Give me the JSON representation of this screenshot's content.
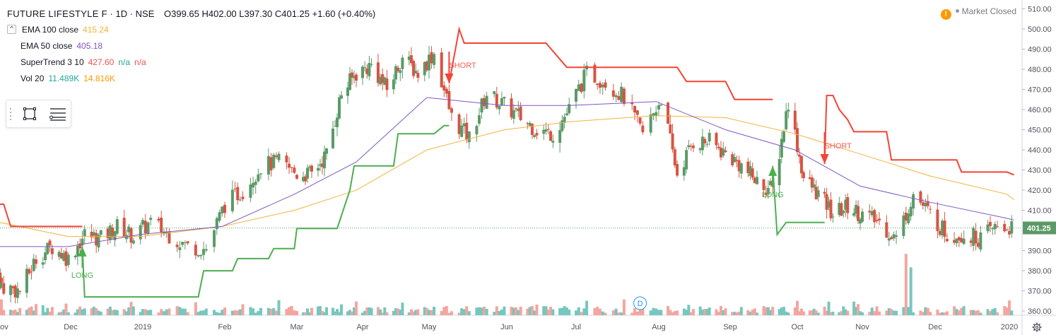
{
  "header": {
    "symbol": "FUTURE LIFESTYLE F",
    "interval": " · 1D · NSE",
    "ohlc": "O399.65 H402.00 L397.30 C401.25 +1.60 (+0.40%)"
  },
  "indicators": [
    {
      "name": "EMA 100 close",
      "value": "415.24",
      "color": "#f2b33d"
    },
    {
      "name": "EMA 50 close",
      "value": "405.18",
      "color": "#7e57c2"
    },
    {
      "name": "SuperTrend 3 10",
      "value": "427.60",
      "extra1": "n/a",
      "extra2": "n/a",
      "color": "#ef5350",
      "extra1_color": "#26a69a",
      "extra2_color": "#ef5350"
    },
    {
      "name": "Vol 20",
      "value": "11.489K",
      "value2": "14.816K",
      "color": "#26a69a",
      "value2_color": "#ff9800"
    }
  ],
  "market_status": "Market Closed",
  "icons": {
    "warning": "warning-icon",
    "settings": "gear-icon",
    "rect": "rectangle-tool-icon",
    "lines": "lines-tool-icon",
    "collapse": "chevron-up-icon",
    "dividend": "dividend-marker-icon"
  },
  "colors": {
    "up": "#5b9a68",
    "down": "#d75442",
    "ema100": "#f2b33d",
    "ema50": "#7e57c2",
    "st_up": "#4caf50",
    "st_down": "#f44336",
    "vol_up": "#76c7bd",
    "vol_down": "#f4a5a0"
  },
  "chart_data": {
    "type": "candlestick",
    "y_axis_ticks": [
      "510.00",
      "500.00",
      "490.00",
      "480.00",
      "470.00",
      "460.00",
      "450.00",
      "440.00",
      "430.00",
      "420.00",
      "410.00",
      "400.00",
      "390.00",
      "380.00",
      "370.00",
      "360.00"
    ],
    "ylim": [
      355,
      513
    ],
    "x_axis_labels": [
      "Nov",
      "Dec",
      "2019",
      "Feb",
      "Mar",
      "Apr",
      "May",
      "Jun",
      "Jul",
      "Aug",
      "Sep",
      "Oct",
      "Nov",
      "Dec",
      "2020"
    ],
    "last_price": "401.25",
    "signals": [
      {
        "label": "LONG",
        "type": "long",
        "date": "2018-12-06",
        "price": 392
      },
      {
        "label": "SHORT",
        "type": "short",
        "date": "2019-05-09",
        "price": 473
      },
      {
        "label": "LONG",
        "type": "long",
        "date": "2019-09-20",
        "price": 432
      },
      {
        "label": "SHORT",
        "type": "short",
        "date": "2019-10-14",
        "price": 433
      }
    ],
    "dividend_marker": {
      "label": "D",
      "date": "2019-07-25"
    },
    "close_path": [
      [
        "2018-10-29",
        378
      ],
      [
        "2018-11-02",
        372
      ],
      [
        "2018-11-09",
        370
      ],
      [
        "2018-11-16",
        386
      ],
      [
        "2018-11-23",
        392
      ],
      [
        "2018-11-30",
        386
      ],
      [
        "2018-12-07",
        398
      ],
      [
        "2018-12-14",
        396
      ],
      [
        "2018-12-21",
        402
      ],
      [
        "2018-12-28",
        397
      ],
      [
        "2019-01-04",
        404
      ],
      [
        "2019-01-11",
        398
      ],
      [
        "2019-01-18",
        392
      ],
      [
        "2019-01-25",
        391
      ],
      [
        "2019-02-01",
        413
      ],
      [
        "2019-02-08",
        420
      ],
      [
        "2019-02-15",
        432
      ],
      [
        "2019-02-22",
        434
      ],
      [
        "2019-03-01",
        428
      ],
      [
        "2019-03-08",
        428
      ],
      [
        "2019-03-15",
        438
      ],
      [
        "2019-03-22",
        468
      ],
      [
        "2019-03-29",
        478
      ],
      [
        "2019-04-05",
        482
      ],
      [
        "2019-04-12",
        470
      ],
      [
        "2019-04-19",
        486
      ],
      [
        "2019-04-26",
        478
      ],
      [
        "2019-05-03",
        488
      ],
      [
        "2019-05-10",
        456
      ],
      [
        "2019-05-17",
        446
      ],
      [
        "2019-05-24",
        468
      ],
      [
        "2019-05-31",
        462
      ],
      [
        "2019-06-07",
        456
      ],
      [
        "2019-06-14",
        450
      ],
      [
        "2019-06-21",
        448
      ],
      [
        "2019-06-28",
        460
      ],
      [
        "2019-07-05",
        478
      ],
      [
        "2019-07-12",
        474
      ],
      [
        "2019-07-19",
        466
      ],
      [
        "2019-07-26",
        448
      ],
      [
        "2019-08-02",
        466
      ],
      [
        "2019-08-09",
        428
      ],
      [
        "2019-08-16",
        444
      ],
      [
        "2019-08-23",
        444
      ],
      [
        "2019-08-30",
        438
      ],
      [
        "2019-09-06",
        432
      ],
      [
        "2019-09-13",
        424
      ],
      [
        "2019-09-20",
        420
      ],
      [
        "2019-09-27",
        464
      ],
      [
        "2019-10-04",
        426
      ],
      [
        "2019-10-11",
        418
      ],
      [
        "2019-10-18",
        408
      ],
      [
        "2019-10-25",
        412
      ],
      [
        "2019-11-01",
        408
      ],
      [
        "2019-11-08",
        404
      ],
      [
        "2019-11-15",
        396
      ],
      [
        "2019-11-22",
        418
      ],
      [
        "2019-11-29",
        408
      ],
      [
        "2019-12-06",
        398
      ],
      [
        "2019-12-13",
        398
      ],
      [
        "2019-12-20",
        396
      ],
      [
        "2019-12-27",
        402
      ],
      [
        "2020-01-03",
        401
      ]
    ],
    "ema100_path": [
      [
        "2018-10-29",
        404
      ],
      [
        "2018-11-30",
        397
      ],
      [
        "2018-12-31",
        397
      ],
      [
        "2019-01-31",
        402
      ],
      [
        "2019-02-28",
        410
      ],
      [
        "2019-03-29",
        420
      ],
      [
        "2019-04-30",
        440
      ],
      [
        "2019-05-31",
        450
      ],
      [
        "2019-06-28",
        454
      ],
      [
        "2019-07-31",
        457
      ],
      [
        "2019-08-30",
        456
      ],
      [
        "2019-09-30",
        448
      ],
      [
        "2019-10-31",
        438
      ],
      [
        "2019-11-29",
        427
      ],
      [
        "2019-12-31",
        418
      ],
      [
        "2020-01-03",
        415.24
      ]
    ],
    "ema50_path": [
      [
        "2018-10-29",
        392
      ],
      [
        "2018-11-30",
        392
      ],
      [
        "2018-12-31",
        398
      ],
      [
        "2019-01-31",
        402
      ],
      [
        "2019-02-28",
        418
      ],
      [
        "2019-03-29",
        434
      ],
      [
        "2019-04-30",
        466
      ],
      [
        "2019-05-31",
        462
      ],
      [
        "2019-06-28",
        462
      ],
      [
        "2019-07-31",
        464
      ],
      [
        "2019-08-30",
        450
      ],
      [
        "2019-09-30",
        440
      ],
      [
        "2019-10-31",
        422
      ],
      [
        "2019-11-29",
        414
      ],
      [
        "2019-12-31",
        406
      ],
      [
        "2020-01-03",
        405.18
      ]
    ],
    "supertrend": [
      {
        "dir": "down",
        "points": [
          [
            "2018-10-29",
            413
          ],
          [
            "2018-11-02",
            413
          ],
          [
            "2018-11-05",
            402
          ],
          [
            "2018-12-06",
            402
          ]
        ]
      },
      {
        "dir": "up",
        "points": [
          [
            "2018-12-06",
            392
          ],
          [
            "2018-12-07",
            367
          ],
          [
            "2019-01-22",
            367
          ],
          [
            "2019-01-24",
            380
          ],
          [
            "2019-02-04",
            380
          ],
          [
            "2019-02-06",
            386
          ],
          [
            "2019-02-18",
            386
          ],
          [
            "2019-02-20",
            391
          ],
          [
            "2019-02-28",
            391
          ],
          [
            "2019-03-01",
            401
          ],
          [
            "2019-03-20",
            401
          ],
          [
            "2019-03-26",
            420
          ],
          [
            "2019-03-28",
            432
          ],
          [
            "2019-04-15",
            432
          ],
          [
            "2019-04-17",
            448
          ],
          [
            "2019-05-03",
            448
          ],
          [
            "2019-05-07",
            452
          ],
          [
            "2019-05-09",
            452
          ]
        ]
      },
      {
        "dir": "down",
        "points": [
          [
            "2019-05-09",
            473
          ],
          [
            "2019-05-13",
            500
          ],
          [
            "2019-05-15",
            493
          ],
          [
            "2019-06-18",
            493
          ],
          [
            "2019-06-27",
            481
          ],
          [
            "2019-08-09",
            481
          ],
          [
            "2019-08-13",
            474
          ],
          [
            "2019-08-30",
            474
          ],
          [
            "2019-09-03",
            465
          ],
          [
            "2019-09-20",
            465
          ]
        ]
      },
      {
        "dir": "up",
        "points": [
          [
            "2019-09-20",
            432
          ],
          [
            "2019-09-22",
            398
          ],
          [
            "2019-09-26",
            404
          ],
          [
            "2019-10-14",
            404
          ]
        ]
      },
      {
        "dir": "down",
        "points": [
          [
            "2019-10-14",
            433
          ],
          [
            "2019-10-15",
            467
          ],
          [
            "2019-10-18",
            467
          ],
          [
            "2019-10-21",
            460
          ],
          [
            "2019-10-25",
            455
          ],
          [
            "2019-10-28",
            449
          ],
          [
            "2019-11-11",
            449
          ],
          [
            "2019-11-13",
            435
          ],
          [
            "2019-12-10",
            435
          ],
          [
            "2019-12-12",
            429
          ],
          [
            "2019-12-31",
            429
          ],
          [
            "2020-01-03",
            427.6
          ]
        ]
      }
    ],
    "volume_spikes": [
      {
        "date": "2019-11-19",
        "rel": 1.0
      },
      {
        "date": "2019-11-21",
        "rel": 0.78
      }
    ]
  }
}
